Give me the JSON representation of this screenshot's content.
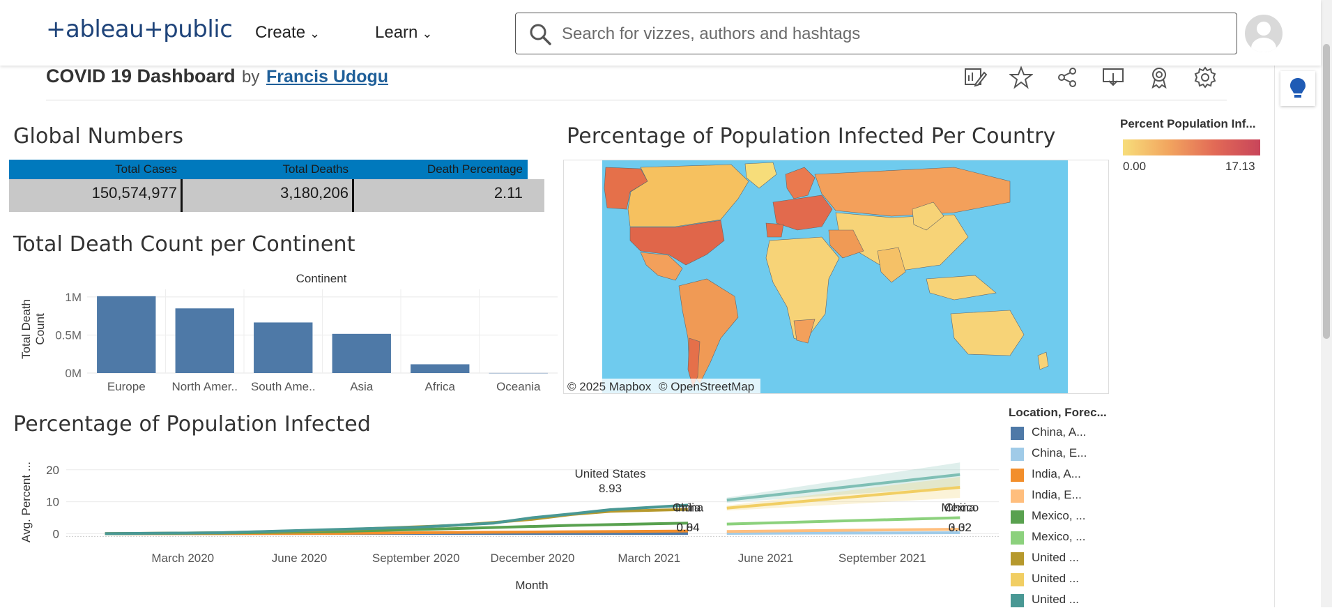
{
  "header": {
    "logo_text": "+ableau+public",
    "nav_create": "Create",
    "nav_learn": "Learn",
    "search_placeholder": "Search for vizzes, authors and hashtags"
  },
  "viz": {
    "title": "COVID 19 Dashboard",
    "by": "by",
    "author": "Francis Udogu"
  },
  "global": {
    "title": "Global Numbers",
    "headers": [
      "Total Cases",
      "Total Deaths",
      "Death Percentage"
    ],
    "values": [
      "150,574,977",
      "3,180,206",
      "2.11"
    ]
  },
  "map": {
    "title": "Percentage of Population Infected Per Country",
    "attribution_mapbox": "© 2025 Mapbox",
    "attribution_osm": "© OpenStreetMap",
    "legend_title": "Percent Population Inf...",
    "legend_min": "0.00",
    "legend_max": "17.13",
    "color_low": "#f7dd7a",
    "color_high": "#c8455a",
    "ocean_color": "#6fcbee"
  },
  "legend": {
    "title": "Location, Forec...",
    "items": [
      {
        "label": "China, A...",
        "color": "#4e79a7"
      },
      {
        "label": "China, E...",
        "color": "#a0cbe8"
      },
      {
        "label": "India, A...",
        "color": "#f28e2b"
      },
      {
        "label": "India, E...",
        "color": "#ffbe7d"
      },
      {
        "label": "Mexico, ...",
        "color": "#59a14f"
      },
      {
        "label": "Mexico, ...",
        "color": "#8cd17d"
      },
      {
        "label": "United ...",
        "color": "#b6992d"
      },
      {
        "label": "United ...",
        "color": "#f1ce63"
      },
      {
        "label": "United ...",
        "color": "#499894"
      }
    ]
  },
  "chart_data": [
    {
      "type": "bar",
      "title": "Total Death Count per Continent",
      "header": "Continent",
      "ylabel_line1": "Total Death",
      "ylabel_line2": "Count",
      "categories": [
        "Europe",
        "North Amer..",
        "South Ame..",
        "Asia",
        "Africa",
        "Oceania"
      ],
      "values": [
        1010000,
        850000,
        665000,
        515000,
        115000,
        1000
      ],
      "ylim": [
        0,
        1100000
      ],
      "yticks": [
        0,
        500000,
        1000000
      ],
      "ytick_labels": [
        "0M",
        "0.5M",
        "1M"
      ],
      "color": "#4e79a7"
    },
    {
      "type": "line",
      "title": "Percentage of Population Infected",
      "xlabel": "Month",
      "ylabel": "Avg. Percent ...",
      "ylim": [
        -1,
        23
      ],
      "yticks": [
        0,
        10,
        20
      ],
      "x_ticks": [
        "2020-03",
        "2020-06",
        "2020-09",
        "2020-12",
        "2021-03",
        "2021-06",
        "2021-09"
      ],
      "x_tick_labels": [
        "March 2020",
        "June 2020",
        "September 2020",
        "December 2020",
        "March 2021",
        "June 2021",
        "September 2021"
      ],
      "x_range": [
        "2019-12",
        "2021-12"
      ],
      "series": [
        {
          "x": [
            "2020-01",
            "2020-04",
            "2020-07",
            "2020-10",
            "2021-01",
            "2021-04"
          ],
          "y": [
            0.0,
            0.06,
            0.06,
            0.06,
            0.07,
            0.07
          ],
          "color": "#4e79a7"
        },
        {
          "x": [
            "2020-01",
            "2020-04",
            "2020-07",
            "2020-10",
            "2021-01",
            "2021-04"
          ],
          "y": [
            0.0,
            0.01,
            0.1,
            0.4,
            0.6,
            0.84
          ],
          "color": "#f28e2b"
        },
        {
          "x": [
            "2020-01",
            "2020-04",
            "2020-07",
            "2020-10",
            "2021-01",
            "2021-04"
          ],
          "y": [
            0.0,
            0.2,
            0.7,
            1.6,
            2.6,
            3.3
          ],
          "color": "#59a14f"
        },
        {
          "x": [
            "2020-01",
            "2020-04",
            "2020-07",
            "2020-10",
            "2020-11",
            "2020-12",
            "2021-01",
            "2021-02",
            "2021-04"
          ],
          "y": [
            0.0,
            0.3,
            1.2,
            2.6,
            3.5,
            4.5,
            6.0,
            7.0,
            7.6
          ],
          "color": "#b6992d"
        },
        {
          "x": [
            "2020-01",
            "2020-04",
            "2020-06",
            "2020-09",
            "2020-11",
            "2020-12",
            "2021-01",
            "2021-02",
            "2021-04"
          ],
          "y": [
            0.0,
            0.3,
            1.0,
            2.0,
            3.3,
            5.0,
            6.2,
            7.5,
            8.93
          ],
          "color": "#499894"
        },
        {
          "x": [
            "2021-05",
            "2021-11"
          ],
          "y": [
            0.1,
            0.3
          ],
          "color": "#a0cbe8"
        },
        {
          "x": [
            "2021-05",
            "2021-11"
          ],
          "y": [
            0.7,
            1.4
          ],
          "color": "#ffbe7d"
        },
        {
          "x": [
            "2021-05",
            "2021-11"
          ],
          "y": [
            3.0,
            5.0
          ],
          "color": "#8cd17d"
        },
        {
          "x": [
            "2021-05",
            "2021-11"
          ],
          "y": [
            8.0,
            14.5
          ],
          "color": "#f1ce63"
        },
        {
          "x": [
            "2021-05",
            "2021-11"
          ],
          "y": [
            10.5,
            18.5
          ],
          "color": "#7fbfb5"
        }
      ],
      "annotations": [
        {
          "text": "United States",
          "x": "2021-02",
          "y": 17.5
        },
        {
          "text": "8.93",
          "x": "2021-02",
          "y": 13.0
        },
        {
          "text": "China",
          "x": "2021-04",
          "y": 7.0
        },
        {
          "text": "India",
          "x": "2021-04",
          "y": 7.0
        },
        {
          "text": "0.84",
          "x": "2021-04",
          "y": 0.7
        },
        {
          "text": "0.04",
          "x": "2021-04",
          "y": 0.7
        },
        {
          "text": "Mexico",
          "x": "2021-11",
          "y": 7.0
        },
        {
          "text": "China",
          "x": "2021-11",
          "y": 7.0
        },
        {
          "text": "0.32",
          "x": "2021-11",
          "y": 0.7
        },
        {
          "text": "3.02",
          "x": "2021-11",
          "y": 0.7
        }
      ]
    }
  ]
}
